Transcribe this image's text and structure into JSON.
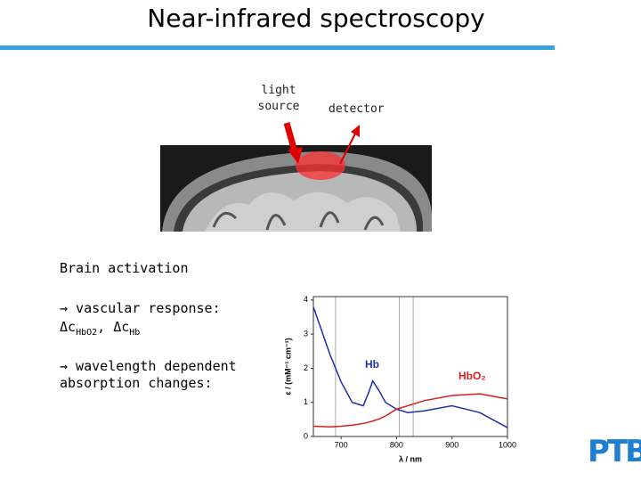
{
  "title": "Near-infrared spectroscopy",
  "labels": {
    "light_source": [
      "light",
      "source"
    ],
    "detector": "detector"
  },
  "text": {
    "heading": "Brain activation",
    "bullet1": "→ vascular response:",
    "formula": [
      "Δc",
      "HbO2",
      ", Δc",
      "Hb"
    ],
    "bullet2": [
      "→ wavelength dependent",
      "absorption changes:"
    ]
  },
  "logo": "PTB",
  "chart_data": {
    "type": "line",
    "xlabel": "λ / nm",
    "ylabel": "ε / (mM⁻¹ cm⁻¹)",
    "x": [
      650,
      680,
      700,
      720,
      740,
      750,
      757,
      770,
      780,
      800,
      820,
      850,
      900,
      950,
      1000
    ],
    "series": [
      {
        "name": "Hb",
        "color": "#1f2fa8",
        "values": [
          3.8,
          2.4,
          1.6,
          1.0,
          0.9,
          1.3,
          1.63,
          1.3,
          1.0,
          0.8,
          0.7,
          0.75,
          0.9,
          0.7,
          0.26
        ]
      },
      {
        "name": "HbO₂",
        "color": "#d42020",
        "values": [
          0.3,
          0.28,
          0.3,
          0.33,
          0.38,
          0.42,
          0.45,
          0.52,
          0.6,
          0.8,
          0.9,
          1.05,
          1.2,
          1.25,
          1.1
        ]
      }
    ],
    "vlines": [
      690,
      805,
      830
    ],
    "xlim": [
      650,
      1000
    ],
    "ylim": [
      0,
      4.1
    ],
    "xticks": [
      700,
      800,
      900,
      1000
    ],
    "yticks": [
      0,
      1,
      2,
      3,
      4
    ]
  }
}
